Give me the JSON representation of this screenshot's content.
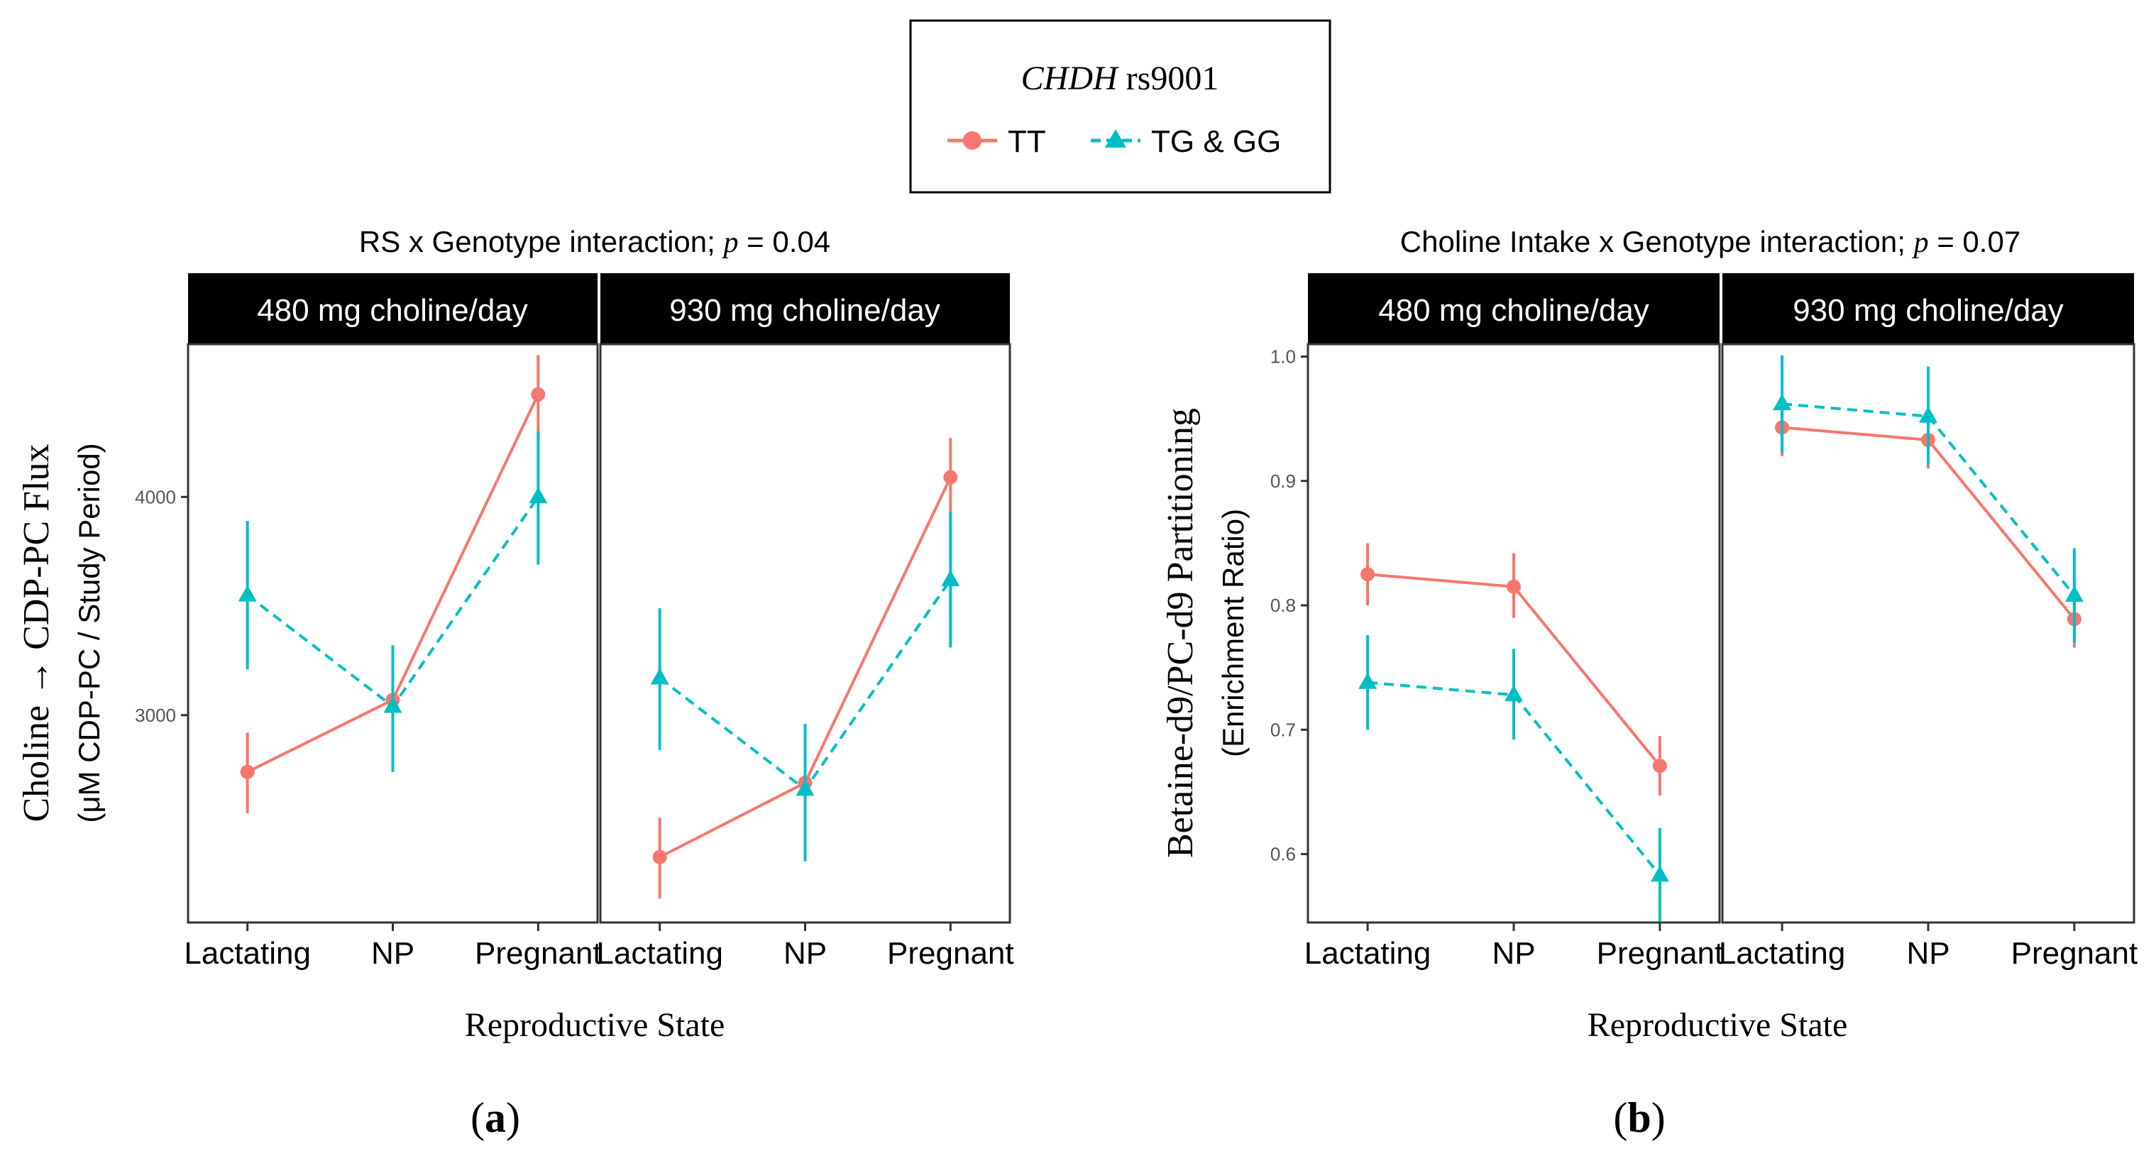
{
  "legend": {
    "gene": "CHDH",
    "snp": "rs9001",
    "entries": [
      {
        "label": "TT",
        "color": "#F8766D",
        "marker": "circle",
        "line": "solid"
      },
      {
        "label": "TG & GG",
        "color": "#00BFC4",
        "marker": "triangle",
        "line": "dashed"
      }
    ]
  },
  "labels": {
    "a": "(a)",
    "b": "(b)",
    "p_prefix": "p"
  },
  "chart_data": [
    {
      "type": "line",
      "title_text": "RS x Genotype interaction; ",
      "title_p": "= 0.04",
      "xlabel": "Reproductive State",
      "ylabel": "Choline → CDP-PC Flux",
      "ylabel2": "(μM CDP-PC / Study Period)",
      "ylim": [
        2050,
        4700
      ],
      "yticks": [
        3000,
        4000
      ],
      "categories": [
        "Lactating",
        "NP",
        "Pregnant"
      ],
      "facets": [
        {
          "label": "480 mg choline/day",
          "series": [
            {
              "name": "TT",
              "values": [
                2740,
                3070,
                4470
              ],
              "lower": [
                2550,
                2870,
                4260
              ],
              "upper": [
                2920,
                3250,
                4650
              ]
            },
            {
              "name": "TG & GG",
              "values": [
                3550,
                3040,
                4000
              ],
              "lower": [
                3210,
                2740,
                3690
              ],
              "upper": [
                3890,
                3320,
                4300
              ]
            }
          ]
        },
        {
          "label": "930 mg choline/day",
          "series": [
            {
              "name": "TT",
              "values": [
                2350,
                2690,
                4090
              ],
              "lower": [
                2160,
                2510,
                3920
              ],
              "upper": [
                2530,
                2870,
                4270
              ]
            },
            {
              "name": "TG & GG",
              "values": [
                3170,
                2660,
                3620
              ],
              "lower": [
                2840,
                2330,
                3310
              ],
              "upper": [
                3490,
                2960,
                3930
              ]
            }
          ]
        }
      ]
    },
    {
      "type": "line",
      "title_text": "Choline Intake x Genotype interaction; ",
      "title_p": "= 0.07",
      "xlabel": "Reproductive State",
      "ylabel": "Betaine-d9/PC-d9 Partitioning",
      "ylabel2": "(Enrichment Ratio)",
      "ylim": [
        0.545,
        1.01
      ],
      "yticks": [
        0.6,
        0.7,
        0.8,
        0.9,
        1.0
      ],
      "ytick_labels": [
        "0.6",
        "0.7",
        "0.8",
        "0.9",
        "1.0"
      ],
      "categories": [
        "Lactating",
        "NP",
        "Pregnant"
      ],
      "facets": [
        {
          "label": "480 mg choline/day",
          "series": [
            {
              "name": "TT",
              "values": [
                0.825,
                0.815,
                0.671
              ],
              "lower": [
                0.8,
                0.79,
                0.647
              ],
              "upper": [
                0.85,
                0.842,
                0.695
              ]
            },
            {
              "name": "TG & GG",
              "values": [
                0.738,
                0.728,
                0.583
              ],
              "lower": [
                0.7,
                0.692,
                0.546
              ],
              "upper": [
                0.776,
                0.765,
                0.621
              ]
            }
          ]
        },
        {
          "label": "930 mg choline/day",
          "series": [
            {
              "name": "TT",
              "values": [
                0.943,
                0.933,
                0.789
              ],
              "lower": [
                0.92,
                0.91,
                0.766
              ],
              "upper": [
                0.966,
                0.956,
                0.812
              ]
            },
            {
              "name": "TG & GG",
              "values": [
                0.962,
                0.952,
                0.808
              ],
              "lower": [
                0.923,
                0.913,
                0.77
              ],
              "upper": [
                1.001,
                0.992,
                0.846
              ]
            }
          ]
        }
      ]
    }
  ]
}
